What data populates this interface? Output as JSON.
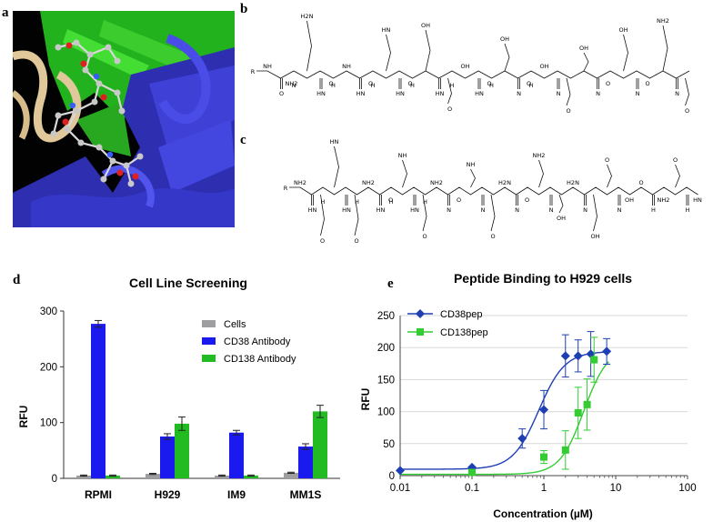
{
  "panels": {
    "a": "a",
    "b": "b",
    "c": "c",
    "d": "d",
    "e": "e"
  },
  "chart_data": [
    {
      "type": "bar",
      "title": "Cell Line Screening",
      "xlabel": "",
      "ylabel": "RFU",
      "ylim": [
        0,
        300
      ],
      "yticks": [
        0,
        100,
        200,
        300
      ],
      "legend_position": "top-right",
      "categories": [
        "RPMI",
        "H929",
        "IM9",
        "MM1S"
      ],
      "series": [
        {
          "name": "Cells",
          "color": "#9e9ea0",
          "values": [
            5,
            8,
            5,
            10
          ],
          "errors": [
            1,
            1,
            1,
            1
          ]
        },
        {
          "name": "CD38 Antibody",
          "color": "#1a1aee",
          "values": [
            277,
            75,
            82,
            57
          ],
          "errors": [
            6,
            5,
            4,
            5
          ]
        },
        {
          "name": "CD138 Antibody",
          "color": "#22bb22",
          "values": [
            5,
            98,
            5,
            120
          ],
          "errors": [
            1,
            12,
            1,
            11
          ]
        }
      ]
    },
    {
      "type": "scatter",
      "title": "Peptide Binding to H929 cells",
      "xlabel": "Concentration (µM)",
      "ylabel": "RFU",
      "xscale": "log",
      "xlim": [
        0.01,
        100
      ],
      "ylim": [
        0,
        250
      ],
      "xticks": [
        "0.01",
        "0.1",
        "1",
        "10",
        "100"
      ],
      "yticks": [
        0,
        50,
        100,
        150,
        200,
        250
      ],
      "grid": "horizontal",
      "legend_position": "top-left",
      "series": [
        {
          "name": "CD38pep",
          "color": "#1e3fb4",
          "marker": "diamond",
          "x": [
            0.01,
            0.1,
            0.5,
            1,
            2,
            3,
            4.5,
            7.5
          ],
          "y": [
            8,
            13,
            58,
            103,
            187,
            187,
            190,
            194
          ],
          "errors": [
            0,
            0,
            15,
            30,
            33,
            25,
            35,
            20
          ]
        },
        {
          "name": "CD138pep",
          "color": "#33cc33",
          "marker": "square",
          "x": [
            0.1,
            1,
            2,
            3,
            4,
            5
          ],
          "y": [
            5,
            29,
            40,
            98,
            111,
            181
          ],
          "errors": [
            0,
            10,
            30,
            40,
            40,
            35
          ]
        }
      ]
    }
  ],
  "molecules": {
    "b": {
      "r_group": "R",
      "labels": [
        "NH",
        "H2N",
        "NH",
        "HN",
        "OH",
        "OH",
        "OH",
        "OH",
        "OH",
        "OH",
        "NH2",
        "NH2",
        "O",
        "O",
        "O",
        "O",
        "O",
        "O",
        "O",
        "O",
        "O",
        "O",
        "O",
        "HN",
        "HN",
        "HN",
        "HN",
        "HN",
        "N",
        "N",
        "N",
        "N",
        "N",
        "N",
        "H",
        "H",
        "H",
        "H",
        "H",
        "H"
      ]
    },
    "c": {
      "r_group": "R",
      "labels": [
        "NH2",
        "HN",
        "NH2",
        "NH",
        "NH2",
        "NH",
        "H2N",
        "NH2",
        "H2N",
        "O",
        "O",
        "O",
        "O",
        "O",
        "O",
        "O",
        "O",
        "O",
        "O",
        "OH",
        "OH",
        "OH",
        "NH2",
        "HN",
        "HN",
        "HN",
        "HN",
        "HN",
        "N",
        "N",
        "N",
        "N",
        "N",
        "N",
        "H",
        "H",
        "H",
        "H",
        "H",
        "H"
      ]
    }
  }
}
